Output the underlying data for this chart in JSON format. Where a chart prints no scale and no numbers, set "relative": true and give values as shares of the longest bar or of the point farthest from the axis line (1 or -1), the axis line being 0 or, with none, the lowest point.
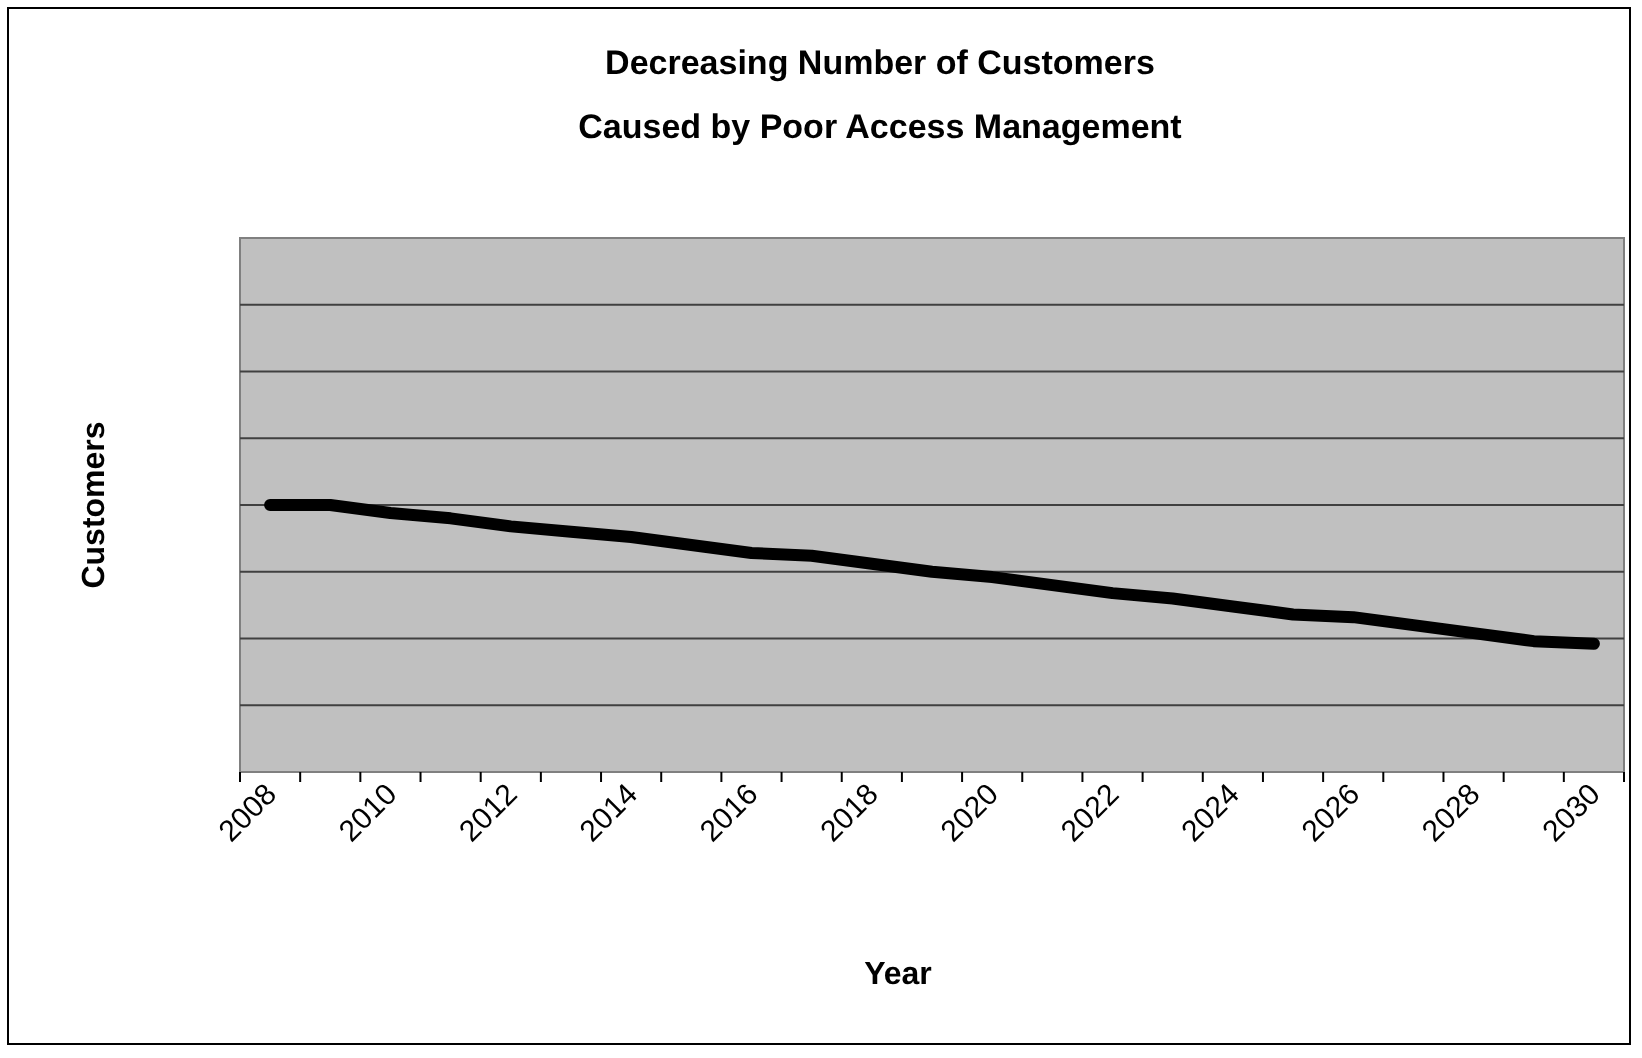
{
  "chart_data": {
    "type": "line",
    "title": "Decreasing Number of Customers\nCaused by Poor Access Management",
    "xlabel": "Year",
    "ylabel": "Customers",
    "relative": true,
    "grid": "y",
    "marker": "none",
    "line_style": "solid",
    "categories": [
      "2008",
      null,
      "2010",
      null,
      "2012",
      null,
      "2014",
      null,
      "2016",
      null,
      "2018",
      null,
      "2020",
      null,
      "2022",
      null,
      "2024",
      null,
      "2026",
      null,
      "2028",
      null,
      "2030"
    ],
    "series": [
      {
        "color": "#000000",
        "values": [
          1,
          1,
          0.97,
          0.95,
          0.92,
          0.9,
          0.88,
          0.85,
          0.82,
          0.81,
          0.78,
          0.75,
          0.73,
          0.7,
          0.67,
          0.65,
          0.62,
          0.59,
          0.58,
          0.55,
          0.52,
          0.49,
          0.48
        ]
      }
    ]
  }
}
